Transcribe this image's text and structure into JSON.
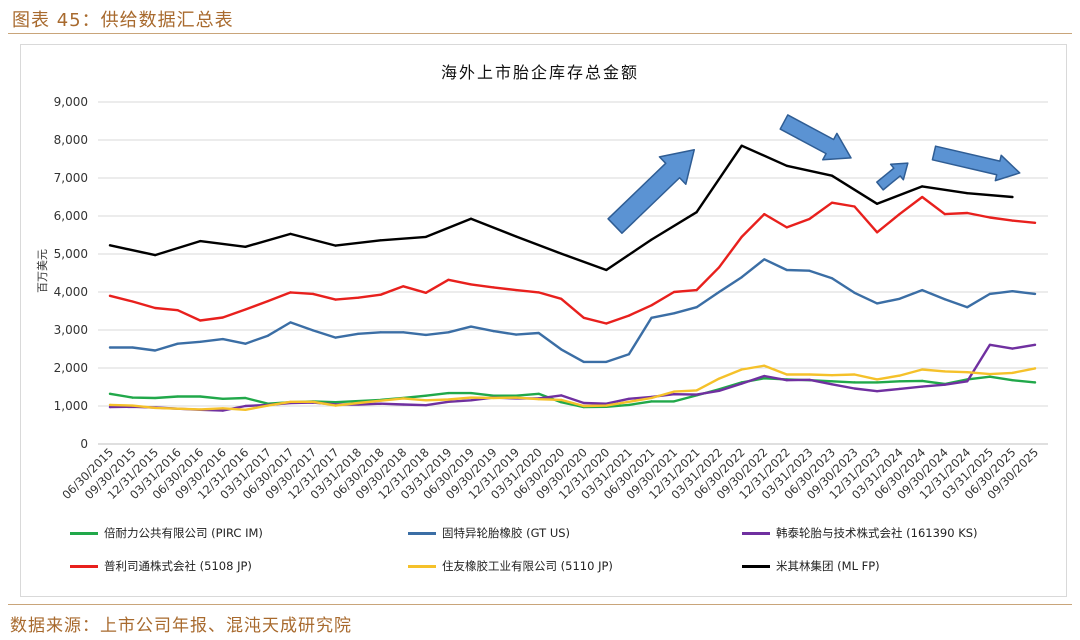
{
  "header": {
    "title": "图表 45：供给数据汇总表"
  },
  "footer": {
    "source": "数据来源：上市公司年报、混沌天成研究院"
  },
  "colors": {
    "accent": "#a86a2e",
    "rule": "#c9a57a",
    "arrow_fill": "#5b93d3",
    "arrow_stroke": "#2f5d94"
  },
  "chart_data": {
    "type": "line",
    "title": "海外上市胎企库存总金额",
    "ylabel": "百万美元",
    "ylim": [
      0,
      9000
    ],
    "yticks": [
      "0",
      "1,000",
      "2,000",
      "3,000",
      "4,000",
      "5,000",
      "6,000",
      "7,000",
      "8,000",
      "9,000"
    ],
    "grid": true,
    "legend": "bottom",
    "categories": [
      "06/30/2015",
      "09/30/2015",
      "12/31/2015",
      "03/31/2016",
      "06/30/2016",
      "09/30/2016",
      "12/31/2016",
      "03/31/2017",
      "06/30/2017",
      "09/30/2017",
      "12/31/2017",
      "03/31/2018",
      "06/30/2018",
      "09/30/2018",
      "12/31/2018",
      "03/31/2019",
      "06/30/2019",
      "09/30/2019",
      "12/31/2019",
      "03/31/2020",
      "06/30/2020",
      "09/30/2020",
      "12/31/2020",
      "03/31/2021",
      "06/30/2021",
      "09/30/2021",
      "12/31/2021",
      "03/31/2022",
      "06/30/2022",
      "09/30/2022",
      "12/31/2022",
      "03/31/2023",
      "06/30/2023",
      "09/30/2023",
      "12/31/2023",
      "03/31/2024",
      "06/30/2024",
      "09/30/2024",
      "12/31/2024",
      "03/31/2025",
      "06/30/2025",
      "09/30/2025"
    ],
    "series": [
      {
        "name": "倍耐力公共有限公司 (PIRC IM)",
        "color": "#21a84a",
        "values": [
          1320,
          1220,
          1210,
          1250,
          1250,
          1190,
          1210,
          1060,
          1100,
          1120,
          1100,
          1130,
          1160,
          1210,
          1270,
          1340,
          1340,
          1270,
          1270,
          1320,
          1100,
          970,
          980,
          1030,
          1120,
          1120,
          1280,
          1440,
          1620,
          1730,
          1700,
          1680,
          1650,
          1620,
          1620,
          1650,
          1660,
          1580,
          1700,
          1770,
          1680,
          1620
        ]
      },
      {
        "name": "固特异轮胎橡胶 (GT US)",
        "color": "#3b6ea5",
        "values": [
          2540,
          2540,
          2460,
          2640,
          2690,
          2760,
          2640,
          2850,
          3200,
          2990,
          2800,
          2900,
          2940,
          2940,
          2870,
          2940,
          3090,
          2970,
          2880,
          2920,
          2490,
          2160,
          2160,
          2360,
          3320,
          3440,
          3600,
          4000,
          4390,
          4860,
          4580,
          4560,
          4360,
          3980,
          3700,
          3820,
          4050,
          3810,
          3600,
          3950,
          4020,
          3950
        ]
      },
      {
        "name": "韩泰轮胎与技术株式会社 (161390 KS)",
        "color": "#7030a0",
        "values": [
          970,
          980,
          960,
          930,
          900,
          880,
          1000,
          1030,
          1080,
          1090,
          1040,
          1040,
          1060,
          1040,
          1020,
          1110,
          1150,
          1220,
          1200,
          1200,
          1280,
          1080,
          1060,
          1190,
          1240,
          1310,
          1300,
          1400,
          1590,
          1790,
          1680,
          1690,
          1570,
          1460,
          1390,
          1450,
          1510,
          1560,
          1650,
          2610,
          2510,
          2610
        ]
      },
      {
        "name": "普利司通株式会社 (5108 JP)",
        "color": "#e8201d",
        "values": [
          3900,
          3750,
          3580,
          3520,
          3250,
          3330,
          3540,
          3760,
          3990,
          3950,
          3800,
          3850,
          3930,
          4150,
          3980,
          4320,
          4200,
          4120,
          4050,
          3990,
          3820,
          3320,
          3170,
          3380,
          3650,
          4000,
          4050,
          4650,
          5450,
          6050,
          5700,
          5920,
          6350,
          6250,
          5570,
          6050,
          6500,
          6050,
          6080,
          5960,
          5880,
          5820
        ]
      },
      {
        "name": "住友橡胶工业有限公司 (5110 JP)",
        "color": "#f5c12a",
        "values": [
          1030,
          1010,
          950,
          930,
          910,
          940,
          900,
          1010,
          1110,
          1110,
          1010,
          1080,
          1140,
          1200,
          1150,
          1170,
          1220,
          1210,
          1220,
          1180,
          1160,
          1000,
          1010,
          1110,
          1210,
          1380,
          1410,
          1720,
          1960,
          2060,
          1830,
          1830,
          1810,
          1830,
          1700,
          1800,
          1960,
          1910,
          1890,
          1840,
          1870,
          1990
        ]
      },
      {
        "name": "米其林集团 (ML FP)",
        "color": "#000000",
        "values": [
          5230,
          null,
          4970,
          null,
          5340,
          null,
          5190,
          null,
          5530,
          null,
          5220,
          null,
          5360,
          null,
          5450,
          null,
          5930,
          null,
          5460,
          null,
          5010,
          null,
          4580,
          null,
          5380,
          null,
          6100,
          null,
          7850,
          null,
          7320,
          null,
          7060,
          null,
          6320,
          null,
          6780,
          null,
          6600,
          null,
          6500,
          null
        ]
      }
    ],
    "annotations": {
      "arrow_icons": [
        "arrow-up-right-icon",
        "arrow-down-right-icon",
        "arrow-up-right-icon",
        "arrow-down-right-icon"
      ]
    }
  }
}
